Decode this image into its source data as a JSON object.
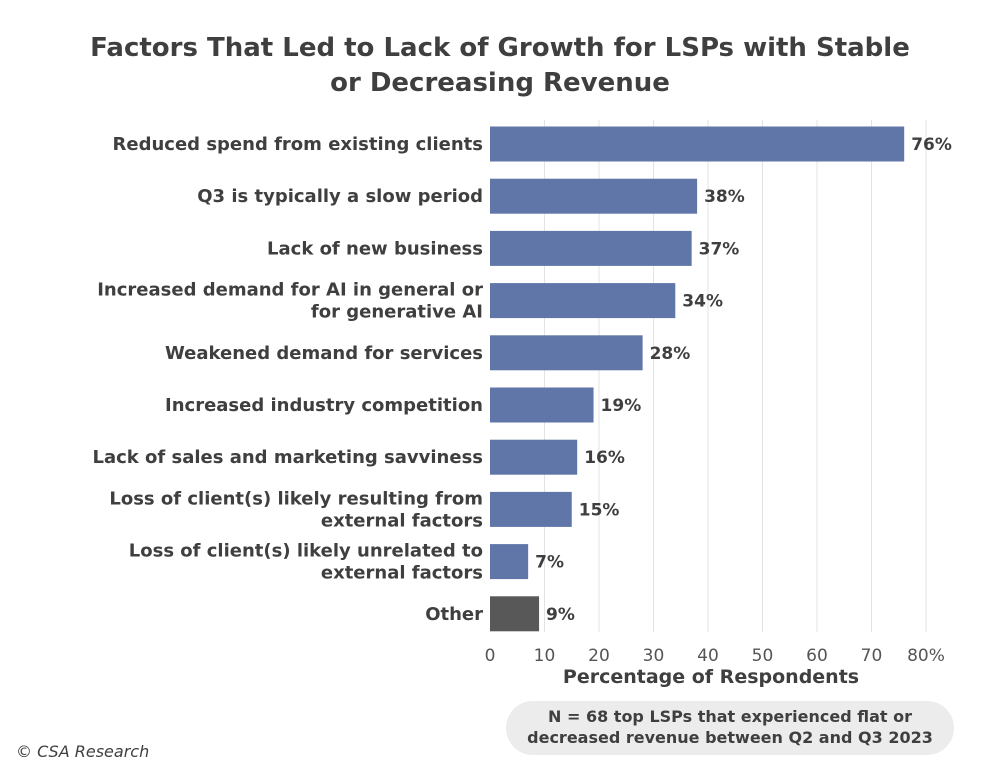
{
  "chart_data": {
    "type": "bar",
    "orientation": "horizontal",
    "title_lines": [
      "Factors That Led to Lack of Growth for LSPs with Stable",
      "or Decreasing Revenue"
    ],
    "categories": [
      [
        "Reduced spend from existing clients"
      ],
      [
        "Q3 is typically a slow period"
      ],
      [
        "Lack of new business"
      ],
      [
        "Increased demand for AI in general or",
        "for generative AI"
      ],
      [
        "Weakened demand for services"
      ],
      [
        "Increased industry competition"
      ],
      [
        "Lack of sales and marketing savviness"
      ],
      [
        "Loss of client(s) likely resulting from",
        "external factors"
      ],
      [
        "Loss of client(s) likely unrelated to",
        "external factors"
      ],
      [
        "Other"
      ]
    ],
    "values": [
      76,
      38,
      37,
      34,
      28,
      19,
      16,
      15,
      7,
      9
    ],
    "value_labels": [
      "76%",
      "38%",
      "37%",
      "34%",
      "28%",
      "19%",
      "16%",
      "15%",
      "7%",
      "9%"
    ],
    "bar_colors": [
      "#6076a8",
      "#6076a8",
      "#6076a8",
      "#6076a8",
      "#6076a8",
      "#6076a8",
      "#6076a8",
      "#6076a8",
      "#6076a8",
      "#585858"
    ],
    "xlim": [
      0,
      80
    ],
    "x_ticks": [
      0,
      10,
      20,
      30,
      40,
      50,
      60,
      70,
      80
    ],
    "x_tick_labels": [
      "0",
      "10",
      "20",
      "30",
      "40",
      "50",
      "60",
      "70",
      "80%"
    ],
    "xlabel": "Percentage of Respondents",
    "grid": true
  },
  "note_lines": [
    "N = 68 top LSPs that experienced flat or",
    "decreased revenue between Q2 and Q3 2023"
  ],
  "copyright": "© CSA Research"
}
